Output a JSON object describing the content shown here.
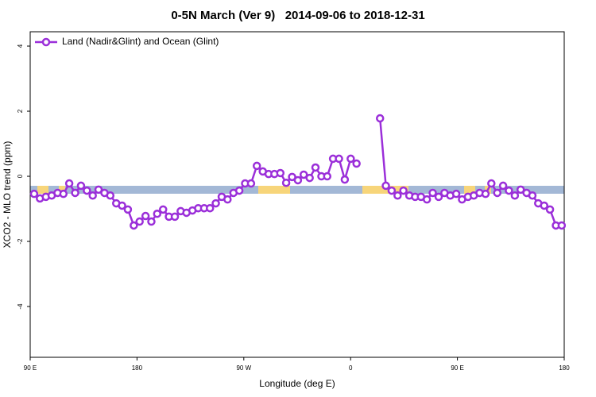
{
  "chart_data": {
    "type": "line",
    "title": "0-5N March (Ver 9)   2014-09-06 to 2018-12-31",
    "x_label": "Longitude (deg E)",
    "y_label": "XCO2 - MLO trend (ppm)",
    "x": [
      93.3,
      98.2,
      103.2,
      108.1,
      113.1,
      118.0,
      122.9,
      127.9,
      132.8,
      137.8,
      142.7,
      147.6,
      152.6,
      157.5,
      162.5,
      167.4,
      172.3,
      177.3,
      182.2,
      187.2,
      192.1,
      197.0,
      202.0,
      206.9,
      211.9,
      216.8,
      221.7,
      226.7,
      231.6,
      236.6,
      241.5,
      246.4,
      251.4,
      256.3,
      261.3,
      266.2,
      271.1,
      276.1,
      281.0,
      286.0,
      290.9,
      295.8,
      300.8,
      305.7,
      310.7,
      315.6,
      320.5,
      325.5,
      330.4,
      335.4,
      340.3,
      345.2,
      350.2,
      355.1,
      360.1,
      365.0,
      369.9,
      374.9,
      379.8,
      384.8,
      389.7,
      394.6,
      399.6,
      404.5,
      409.5,
      414.4,
      419.3,
      424.3,
      429.2,
      434.2,
      439.1,
      444.0,
      449.0,
      453.9,
      458.9,
      463.8,
      468.7,
      473.7,
      478.6,
      483.6,
      488.5,
      493.4,
      498.4,
      503.3,
      508.3,
      513.2,
      518.1,
      523.1,
      528.0,
      533.0,
      537.9
    ],
    "series": [
      {
        "name": "Land (Nadir&Glint) and Ocean (Glint)",
        "color": "#9b2fd9",
        "values": [
          -0.54,
          -0.68,
          -0.63,
          -0.59,
          -0.51,
          -0.54,
          -0.22,
          -0.51,
          -0.29,
          -0.44,
          -0.59,
          -0.41,
          -0.51,
          -0.59,
          -0.83,
          -0.9,
          -1.02,
          -1.51,
          -1.39,
          -1.22,
          -1.39,
          -1.15,
          -1.02,
          -1.24,
          -1.24,
          -1.07,
          -1.12,
          -1.05,
          -0.98,
          -0.98,
          -0.98,
          -0.83,
          -0.63,
          -0.71,
          -0.51,
          -0.44,
          -0.22,
          -0.22,
          0.32,
          0.15,
          0.07,
          0.07,
          0.1,
          -0.2,
          -0.02,
          -0.12,
          0.05,
          -0.05,
          0.27,
          0,
          0,
          0.54,
          0.54,
          -0.1,
          0.54,
          0.39,
          null,
          null,
          null,
          1.78,
          -0.29,
          -0.44,
          -0.59,
          -0.44,
          -0.59,
          -0.63,
          -0.63,
          -0.71,
          -0.51,
          -0.63,
          -0.51,
          -0.59,
          -0.54,
          -0.71,
          -0.63,
          -0.59,
          -0.51,
          -0.54,
          -0.22,
          -0.51,
          -0.29,
          -0.44,
          -0.59,
          -0.41,
          -0.51,
          -0.59,
          -0.83,
          -0.9,
          -1.02,
          -1.51,
          -1.51
        ]
      }
    ],
    "xlim": [
      90,
      540
    ],
    "xticks": [
      {
        "value": 90,
        "label": "90 E"
      },
      180,
      {
        "value": 270,
        "label": "90 W"
      },
      {
        "value": 360,
        "label": "0"
      },
      {
        "value": 450,
        "label": "90 E"
      },
      {
        "value": 540,
        "label": "180"
      }
    ],
    "ylim": [
      -5.56,
      4.44
    ],
    "yticks": [
      -4,
      -2,
      0,
      2,
      4
    ],
    "legend": "top-left"
  }
}
